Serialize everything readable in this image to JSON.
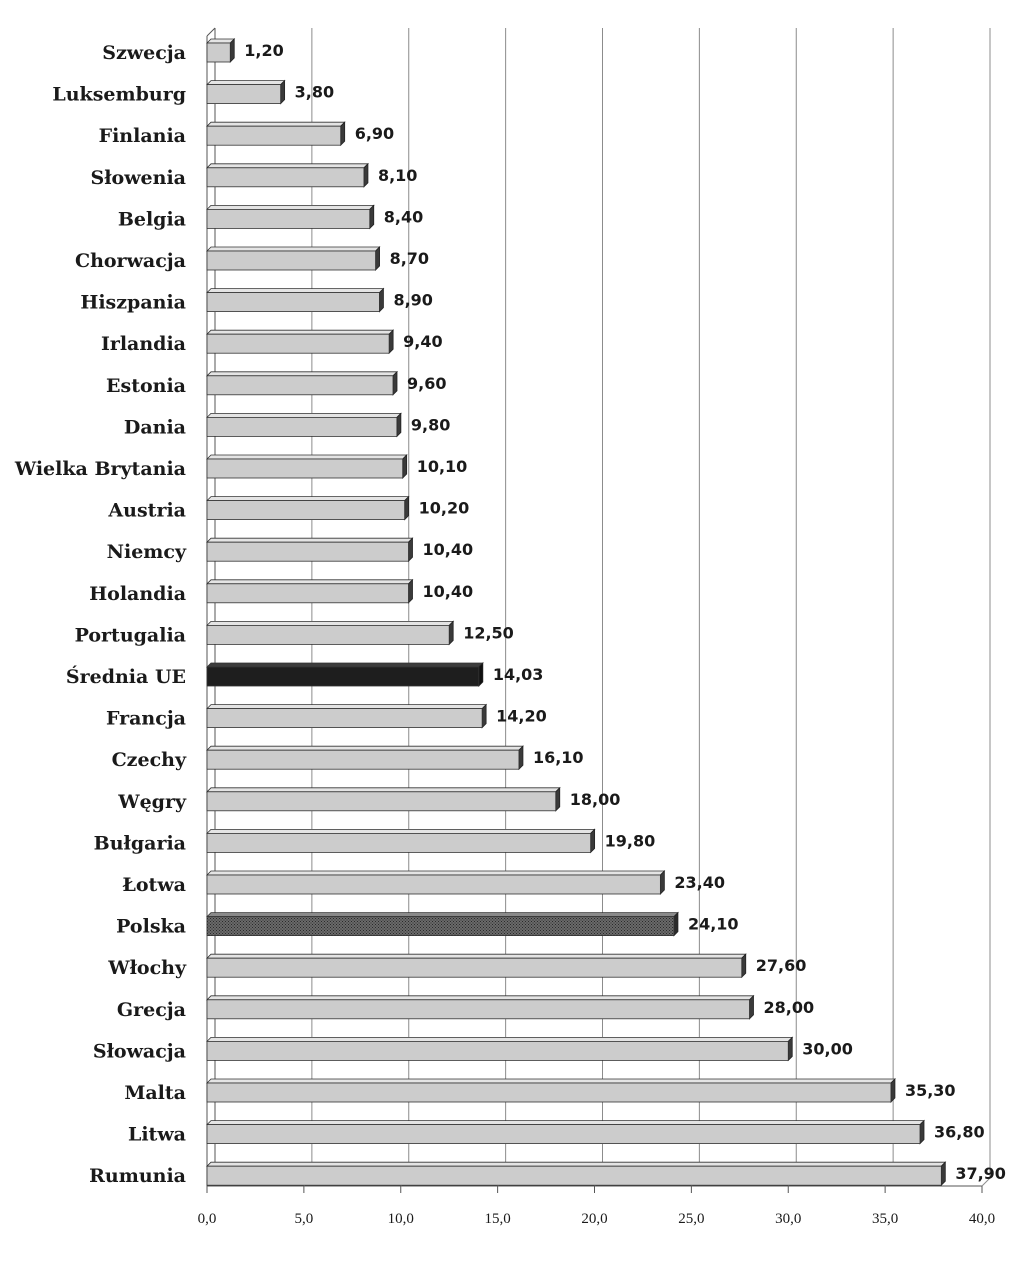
{
  "chart_data": {
    "type": "bar",
    "orientation": "horizontal",
    "categories": [
      "Szwecja",
      "Luksemburg",
      "Finlania",
      "Słowenia",
      "Belgia",
      "Chorwacja",
      "Hiszpania",
      "Irlandia",
      "Estonia",
      "Dania",
      "Wielka Brytania",
      "Austria",
      "Niemcy",
      "Holandia",
      "Portugalia",
      "Średnia UE",
      "Francja",
      "Czechy",
      "Węgry",
      "Bułgaria",
      "Łotwa",
      "Polska",
      "Włochy",
      "Grecja",
      "Słowacja",
      "Malta",
      "Litwa",
      "Rumunia"
    ],
    "values": [
      1.2,
      3.8,
      6.9,
      8.1,
      8.4,
      8.7,
      8.9,
      9.4,
      9.6,
      9.8,
      10.1,
      10.2,
      10.4,
      10.4,
      12.5,
      14.03,
      14.2,
      16.1,
      18.0,
      19.8,
      23.4,
      24.1,
      27.6,
      28.0,
      30.0,
      35.3,
      36.8,
      37.9
    ],
    "value_labels": [
      "1,20",
      "3,80",
      "6,90",
      "8,10",
      "8,40",
      "8,70",
      "8,90",
      "9,40",
      "9,60",
      "9,80",
      "10,10",
      "10,20",
      "10,40",
      "10,40",
      "12,50",
      "14,03",
      "14,20",
      "16,10",
      "18,00",
      "19,80",
      "23,40",
      "24,10",
      "27,60",
      "28,00",
      "30,00",
      "35,30",
      "36,80",
      "37,90"
    ],
    "highlight": {
      "Średnia UE": "solid-black",
      "Polska": "dotted-dark"
    },
    "xticks": [
      "0,0",
      "5,0",
      "10,0",
      "15,0",
      "20,0",
      "25,0",
      "30,0",
      "35,0",
      "40,0"
    ],
    "xlim": [
      0,
      40
    ],
    "grid": true,
    "legend": "none",
    "colors": {
      "bar": "#cccccc",
      "bar_top": "#e4e4e4",
      "bar_side": "#3a3a3a",
      "average": "#1e1e1e",
      "poland": "#555555",
      "grid": "#8c8c8c"
    }
  }
}
